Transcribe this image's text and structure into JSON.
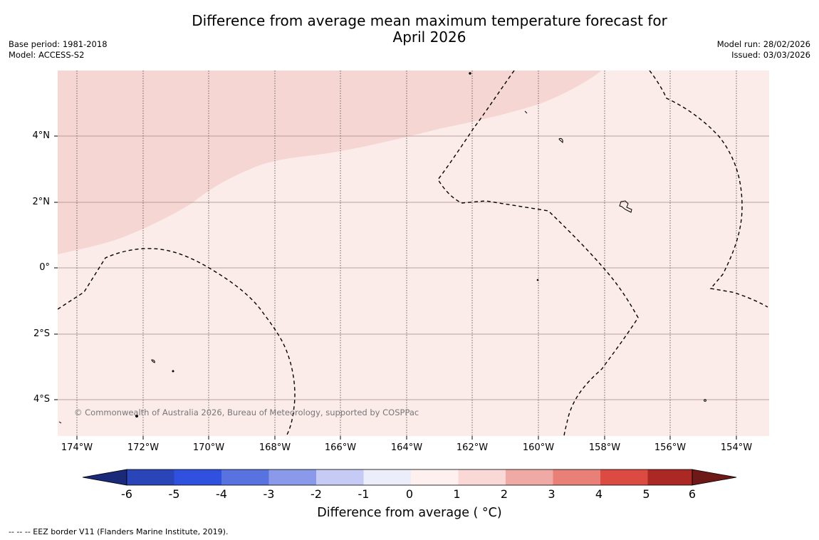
{
  "title": {
    "line1": "Difference from average mean maximum temperature forecast for",
    "line2": "April 2026"
  },
  "meta_left": {
    "base_period": "Base period: 1981-2018",
    "model": "Model: ACCESS-S2"
  },
  "meta_right": {
    "model_run": "Model run: 28/02/2026",
    "issued": "Issued: 03/03/2026"
  },
  "map": {
    "lat_labels": [
      "4°N",
      "2°N",
      "0°",
      "2°S",
      "4°S"
    ],
    "lon_labels": [
      "174°W",
      "172°W",
      "170°W",
      "168°W",
      "166°W",
      "164°W",
      "162°W",
      "160°W",
      "158°W",
      "156°W",
      "154°W"
    ],
    "copyright": "© Commonwealth of Australia 2026, Bureau of Meteorology, supported by COSPPac",
    "colors": {
      "anomaly_0_1": "#fbebe9",
      "anomaly_1_2": "#f6d6d3"
    }
  },
  "colorbar": {
    "ticks": [
      "-6",
      "-5",
      "-4",
      "-3",
      "-2",
      "-1",
      "0",
      "1",
      "2",
      "3",
      "4",
      "5",
      "6"
    ],
    "colors": [
      "#1a2a78",
      "#2a45b8",
      "#3050df",
      "#5872e0",
      "#8b99ea",
      "#c5cbf5",
      "#ecedfb",
      "#fdf0ee",
      "#f9d8d6",
      "#efaaa6",
      "#e88078",
      "#dc4b42",
      "#ab2824",
      "#6e1818"
    ],
    "title": "Difference from average ( °C)"
  },
  "footer": {
    "eez_note": "--  --  -- EEZ border V11 (Flanders Marine Institute, 2019)."
  }
}
